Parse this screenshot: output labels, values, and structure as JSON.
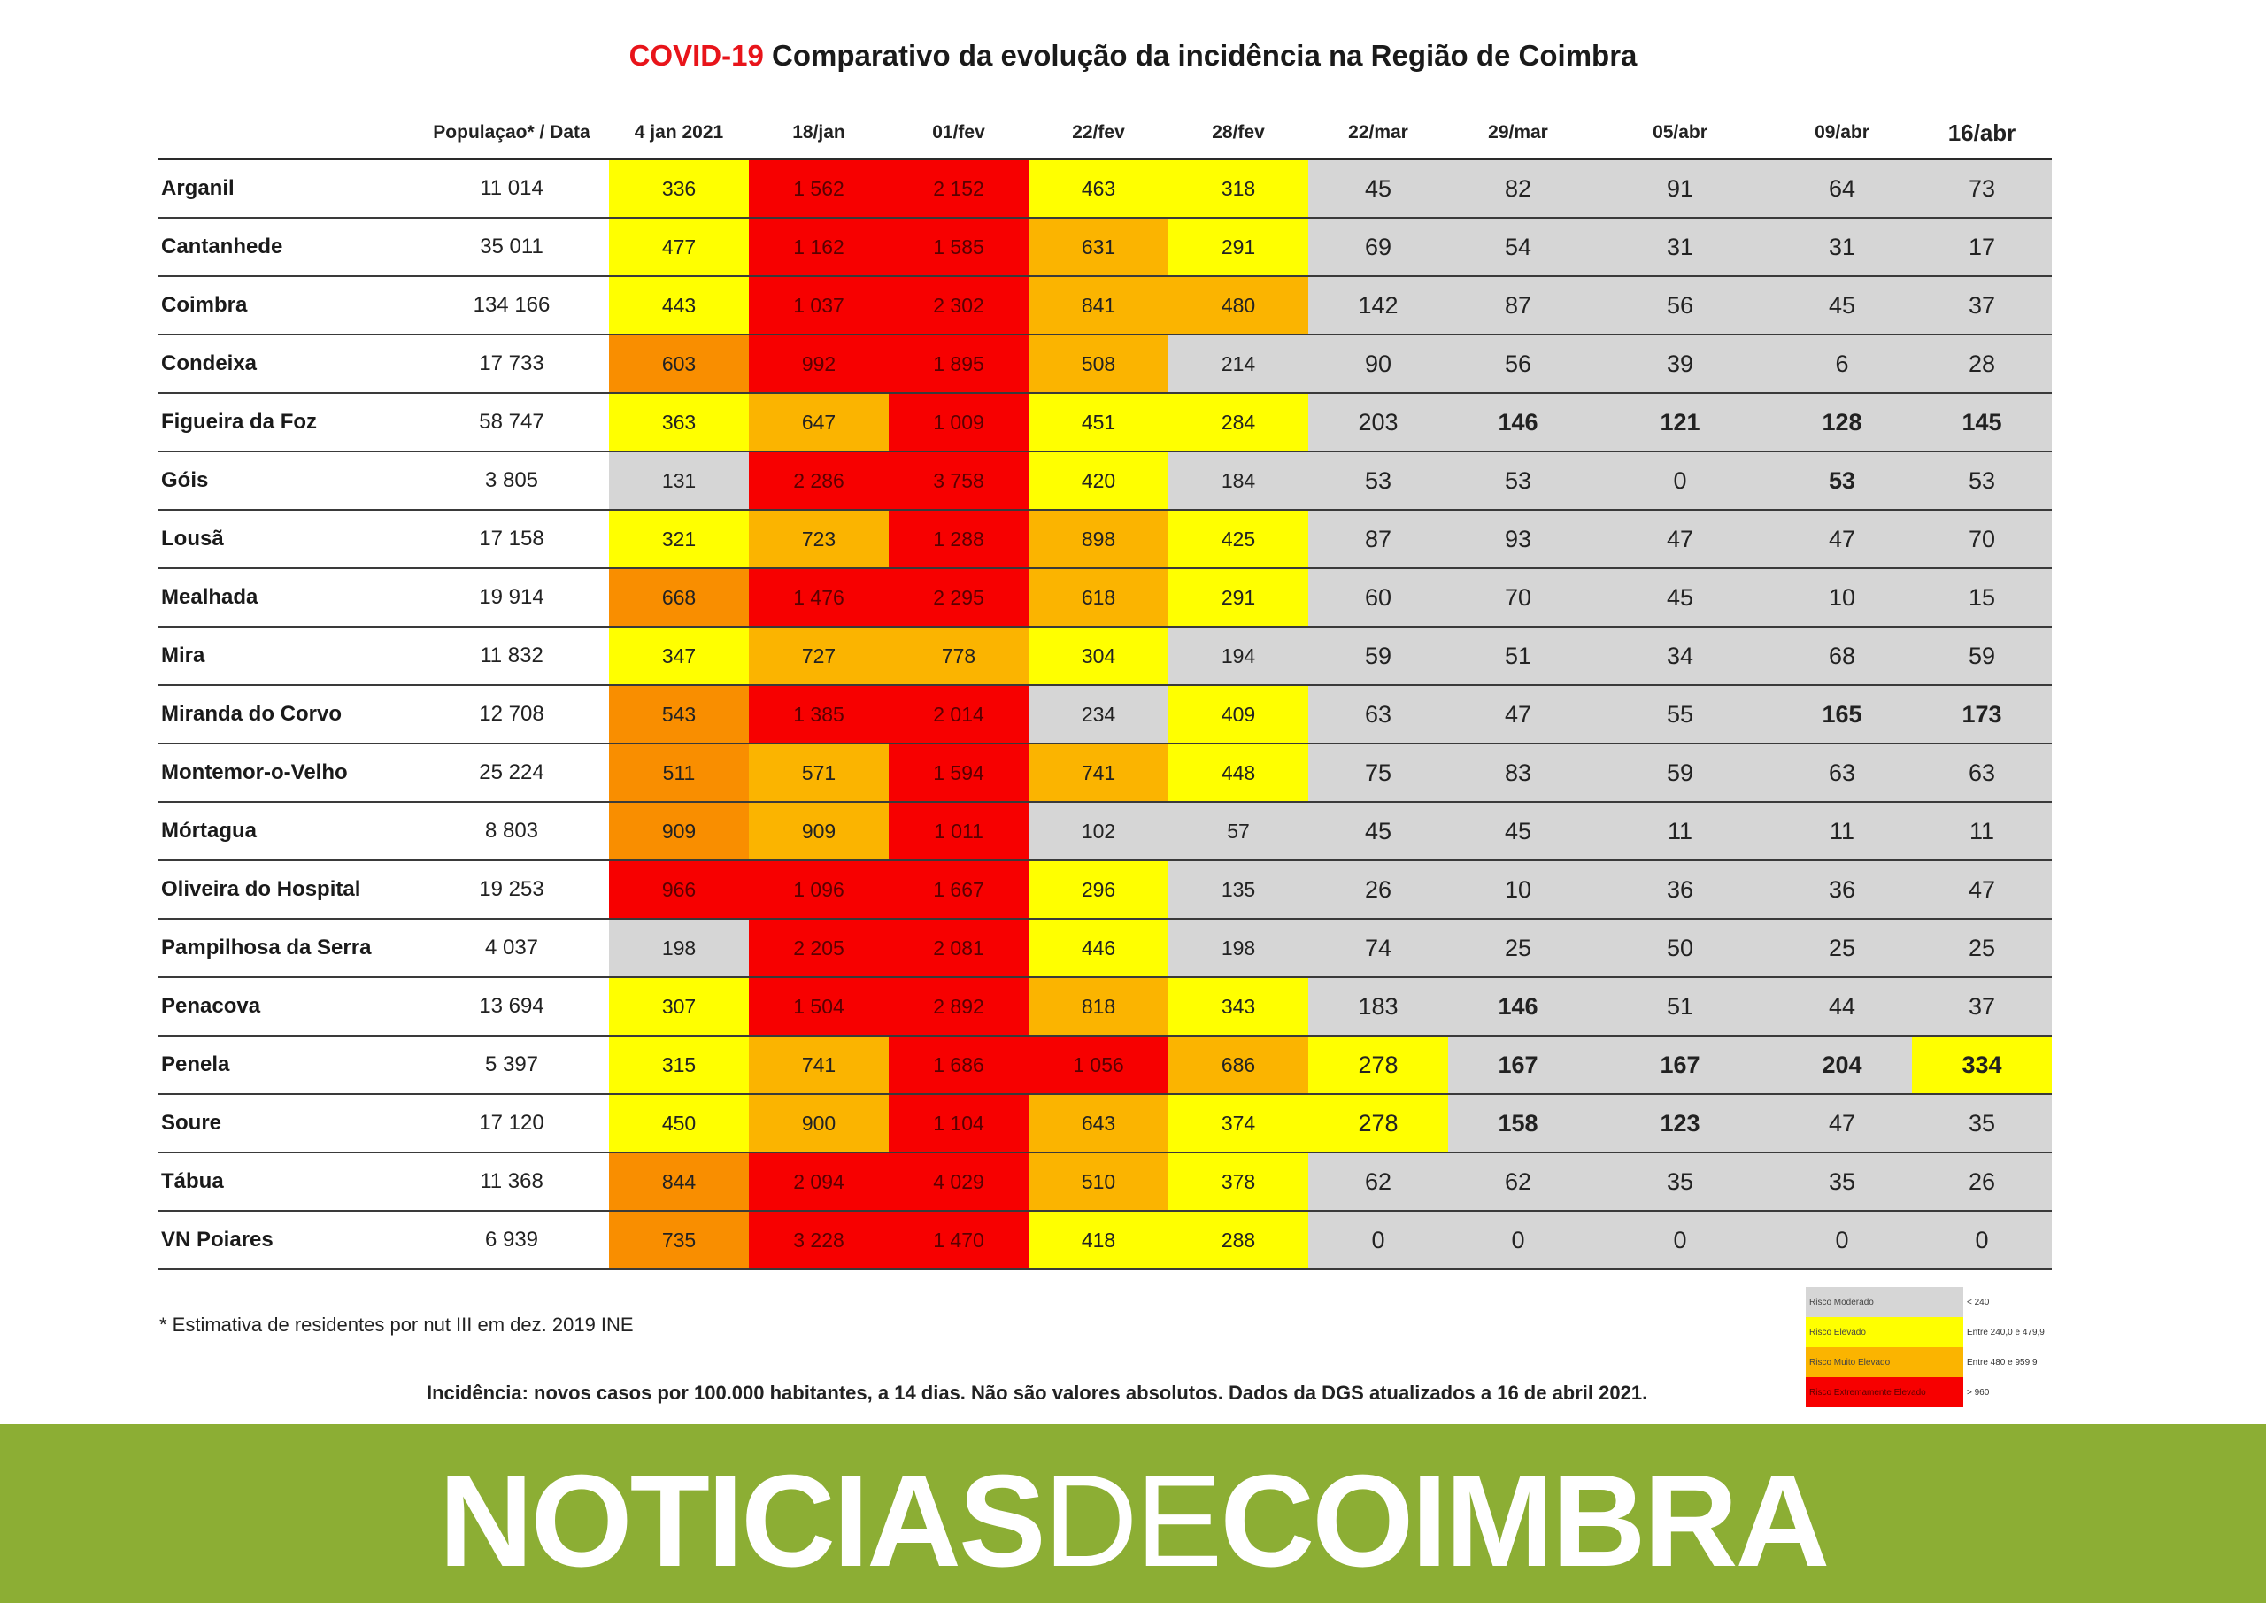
{
  "title": {
    "highlight": "COVID-19",
    "rest": "Comparativo da evolução da incidência na Região de Coimbra"
  },
  "colors": {
    "grey": "#d6d6d6",
    "yellow": "#ffff00",
    "orange": "#fbb400",
    "dark_orange": "#f98e00",
    "red": "#f70000",
    "banner": "#8cae34",
    "title_accent": "#e8141a"
  },
  "table": {
    "headers": [
      "",
      "Populaçao* / Data",
      "4 jan 2021",
      "18/jan",
      "01/fev",
      "22/fev",
      "28/fev",
      "22/mar",
      "29/mar",
      "05/abr",
      "09/abr",
      "16/abr"
    ],
    "rows": [
      {
        "name": "Arganil",
        "pop": "11 014",
        "values": [
          "336",
          "1 562",
          "2 152",
          "463",
          "318",
          "45",
          "82",
          "91",
          "64",
          "73"
        ],
        "colors": [
          "ye",
          "rd",
          "rd",
          "ye",
          "ye",
          "gy",
          "gy",
          "gy",
          "gy",
          "gy"
        ]
      },
      {
        "name": "Cantanhede",
        "pop": "35 011",
        "values": [
          "477",
          "1 162",
          "1 585",
          "631",
          "291",
          "69",
          "54",
          "31",
          "31",
          "17"
        ],
        "colors": [
          "ye",
          "rd",
          "rd",
          "or",
          "ye",
          "gy",
          "gy",
          "gy",
          "gy",
          "gy"
        ]
      },
      {
        "name": "Coimbra",
        "pop": "134 166",
        "values": [
          "443",
          "1 037",
          "2 302",
          "841",
          "480",
          "142",
          "87",
          "56",
          "45",
          "37"
        ],
        "colors": [
          "ye",
          "rd",
          "rd",
          "or",
          "or",
          "gy",
          "gy",
          "gy",
          "gy",
          "gy"
        ]
      },
      {
        "name": "Condeixa",
        "pop": "17 733",
        "values": [
          "603",
          "992",
          "1 895",
          "508",
          "214",
          "90",
          "56",
          "39",
          "6",
          "28"
        ],
        "colors": [
          "do",
          "rd",
          "rd",
          "or",
          "gy",
          "gy",
          "gy",
          "gy",
          "gy",
          "gy"
        ]
      },
      {
        "name": "Figueira da Foz",
        "pop": "58 747",
        "values": [
          "363",
          "647",
          "1 009",
          "451",
          "284",
          "203",
          "146",
          "121",
          "128",
          "145"
        ],
        "colors": [
          "ye",
          "or",
          "rd",
          "ye",
          "ye",
          "gy",
          "gy",
          "gy",
          "gy",
          "gy"
        ],
        "bold": [
          6,
          7,
          8,
          9
        ]
      },
      {
        "name": "Góis",
        "pop": "3 805",
        "values": [
          "131",
          "2 286",
          "3 758",
          "420",
          "184",
          "53",
          "53",
          "0",
          "53",
          "53"
        ],
        "colors": [
          "gy",
          "rd",
          "rd",
          "ye",
          "gy",
          "gy",
          "gy",
          "gy",
          "gy",
          "gy"
        ],
        "bold": [
          8
        ]
      },
      {
        "name": "Lousã",
        "pop": "17 158",
        "values": [
          "321",
          "723",
          "1 288",
          "898",
          "425",
          "87",
          "93",
          "47",
          "47",
          "70"
        ],
        "colors": [
          "ye",
          "or",
          "rd",
          "or",
          "ye",
          "gy",
          "gy",
          "gy",
          "gy",
          "gy"
        ]
      },
      {
        "name": "Mealhada",
        "pop": "19 914",
        "values": [
          "668",
          "1 476",
          "2 295",
          "618",
          "291",
          "60",
          "70",
          "45",
          "10",
          "15"
        ],
        "colors": [
          "do",
          "rd",
          "rd",
          "or",
          "ye",
          "gy",
          "gy",
          "gy",
          "gy",
          "gy"
        ]
      },
      {
        "name": "Mira",
        "pop": "11 832",
        "values": [
          "347",
          "727",
          "778",
          "304",
          "194",
          "59",
          "51",
          "34",
          "68",
          "59"
        ],
        "colors": [
          "ye",
          "or",
          "or",
          "ye",
          "gy",
          "gy",
          "gy",
          "gy",
          "gy",
          "gy"
        ]
      },
      {
        "name": "Miranda do Corvo",
        "pop": "12 708",
        "values": [
          "543",
          "1 385",
          "2 014",
          "234",
          "409",
          "63",
          "47",
          "55",
          "165",
          "173"
        ],
        "colors": [
          "do",
          "rd",
          "rd",
          "gy",
          "ye",
          "gy",
          "gy",
          "gy",
          "gy",
          "gy"
        ],
        "bold": [
          8,
          9
        ]
      },
      {
        "name": "Montemor-o-Velho",
        "pop": "25 224",
        "values": [
          "511",
          "571",
          "1 594",
          "741",
          "448",
          "75",
          "83",
          "59",
          "63",
          "63"
        ],
        "colors": [
          "do",
          "or",
          "rd",
          "or",
          "ye",
          "gy",
          "gy",
          "gy",
          "gy",
          "gy"
        ]
      },
      {
        "name": "Mórtagua",
        "pop": "8 803",
        "values": [
          "909",
          "909",
          "1 011",
          "102",
          "57",
          "45",
          "45",
          "11",
          "11",
          "11"
        ],
        "colors": [
          "do",
          "or",
          "rd",
          "gy",
          "gy",
          "gy",
          "gy",
          "gy",
          "gy",
          "gy"
        ]
      },
      {
        "name": "Oliveira do Hospital",
        "pop": "19 253",
        "values": [
          "966",
          "1 096",
          "1 667",
          "296",
          "135",
          "26",
          "10",
          "36",
          "36",
          "47"
        ],
        "colors": [
          "rd",
          "rd",
          "rd",
          "ye",
          "gy",
          "gy",
          "gy",
          "gy",
          "gy",
          "gy"
        ]
      },
      {
        "name": "Pampilhosa da Serra",
        "pop": "4 037",
        "values": [
          "198",
          "2 205",
          "2 081",
          "446",
          "198",
          "74",
          "25",
          "50",
          "25",
          "25"
        ],
        "colors": [
          "gy",
          "rd",
          "rd",
          "ye",
          "gy",
          "gy",
          "gy",
          "gy",
          "gy",
          "gy"
        ]
      },
      {
        "name": "Penacova",
        "pop": "13 694",
        "values": [
          "307",
          "1 504",
          "2 892",
          "818",
          "343",
          "183",
          "146",
          "51",
          "44",
          "37"
        ],
        "colors": [
          "ye",
          "rd",
          "rd",
          "or",
          "ye",
          "gy",
          "gy",
          "gy",
          "gy",
          "gy"
        ],
        "bold": [
          6
        ]
      },
      {
        "name": "Penela",
        "pop": "5 397",
        "values": [
          "315",
          "741",
          "1 686",
          "1 056",
          "686",
          "278",
          "167",
          "167",
          "204",
          "334"
        ],
        "colors": [
          "ye",
          "or",
          "rd",
          "rd",
          "or",
          "ye",
          "gy",
          "gy",
          "gy",
          "ye"
        ],
        "bold": [
          6,
          7,
          8,
          9
        ]
      },
      {
        "name": "Soure",
        "pop": "17 120",
        "values": [
          "450",
          "900",
          "1 104",
          "643",
          "374",
          "278",
          "158",
          "123",
          "47",
          "35"
        ],
        "colors": [
          "ye",
          "or",
          "rd",
          "or",
          "ye",
          "ye",
          "gy",
          "gy",
          "gy",
          "gy"
        ],
        "bold": [
          6,
          7
        ]
      },
      {
        "name": "Tábua",
        "pop": "11 368",
        "values": [
          "844",
          "2 094",
          "4 029",
          "510",
          "378",
          "62",
          "62",
          "35",
          "35",
          "26"
        ],
        "colors": [
          "do",
          "rd",
          "rd",
          "or",
          "ye",
          "gy",
          "gy",
          "gy",
          "gy",
          "gy"
        ]
      },
      {
        "name": "VN Poiares",
        "pop": "6 939",
        "values": [
          "735",
          "3 228",
          "1 470",
          "418",
          "288",
          "0",
          "0",
          "0",
          "0",
          "0"
        ],
        "colors": [
          "do",
          "rd",
          "rd",
          "ye",
          "ye",
          "gy",
          "gy",
          "gy",
          "gy",
          "gy"
        ]
      }
    ]
  },
  "footnote": "* Estimativa de residentes por nut III em dez. 2019 INE",
  "incidence_note": "Incidência: novos casos por 100.000 habitantes, a 14 dias. Não são valores absolutos. Dados da DGS atualizados a 16 de abril 2021.",
  "legend": [
    {
      "label": "Risco Moderado",
      "range": "< 240",
      "color": "gy"
    },
    {
      "label": "Risco Elevado",
      "range": "Entre 240,0 e 479,9",
      "color": "ye"
    },
    {
      "label": "Risco Muito Elevado",
      "range": "Entre 480 e 959,9",
      "color": "or"
    },
    {
      "label": "Risco Extremamente Elevado",
      "range": "> 960",
      "color": "rd"
    }
  ],
  "banner": {
    "part1": "NOTICIAS",
    "part2": "DE",
    "part3": "COIMBRA"
  }
}
